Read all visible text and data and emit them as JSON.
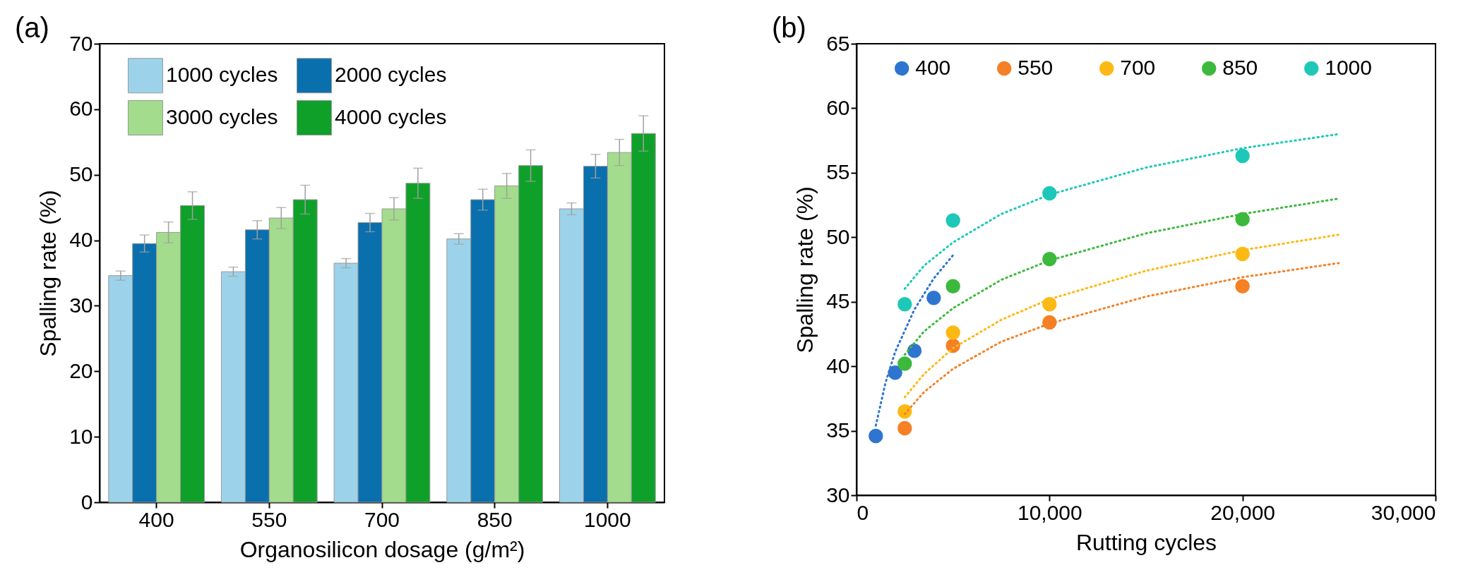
{
  "chart_data": [
    {
      "type": "bar",
      "title": "(a)",
      "xlabel": "Organosilicon dosage (g/m²)",
      "ylabel": "Spalling rate (%)",
      "categories": [
        "400",
        "550",
        "700",
        "850",
        "1000"
      ],
      "series": [
        {
          "name": "1000 cycles",
          "color": "#9dd3ea",
          "values": [
            34.6,
            35.2,
            36.5,
            40.2,
            44.8
          ],
          "errors": [
            0.7,
            0.7,
            0.7,
            0.8,
            0.9
          ]
        },
        {
          "name": "2000 cycles",
          "color": "#0a6fad",
          "values": [
            39.5,
            41.6,
            42.7,
            46.2,
            51.3
          ],
          "errors": [
            1.3,
            1.4,
            1.4,
            1.6,
            1.8
          ]
        },
        {
          "name": "3000 cycles",
          "color": "#a3dc8c",
          "values": [
            41.2,
            43.4,
            44.8,
            48.3,
            53.4
          ],
          "errors": [
            1.6,
            1.6,
            1.7,
            1.9,
            2.0
          ]
        },
        {
          "name": "4000 cycles",
          "color": "#0fa02a",
          "values": [
            45.3,
            46.2,
            48.7,
            51.4,
            56.3
          ],
          "errors": [
            2.1,
            2.2,
            2.3,
            2.4,
            2.7
          ]
        }
      ],
      "ylim": [
        0,
        70
      ],
      "yticks": [
        0,
        10,
        20,
        30,
        40,
        50,
        60,
        70
      ],
      "legend": "top left"
    },
    {
      "type": "scatter",
      "title": "(b)",
      "xlabel": "Rutting cycles",
      "ylabel": "Spalling rate (%)",
      "marker": "circle",
      "series": [
        {
          "name": "400",
          "color": "#2e75d0",
          "x": [
            1000,
            2000,
            3000,
            4000
          ],
          "values": [
            34.6,
            39.5,
            41.2,
            45.3
          ]
        },
        {
          "name": "550",
          "color": "#f58025",
          "x": [
            2500,
            5000,
            10000,
            20000
          ],
          "values": [
            35.2,
            41.6,
            43.4,
            46.2
          ]
        },
        {
          "name": "700",
          "color": "#fdb913",
          "x": [
            2500,
            5000,
            10000,
            20000
          ],
          "values": [
            36.5,
            42.6,
            44.8,
            48.7
          ]
        },
        {
          "name": "850",
          "color": "#3cb93c",
          "x": [
            2500,
            5000,
            10000,
            20000
          ],
          "values": [
            40.2,
            46.2,
            48.3,
            51.4
          ]
        },
        {
          "name": "1000",
          "color": "#1ec8b8",
          "x": [
            2500,
            5000,
            10000,
            20000
          ],
          "values": [
            44.8,
            51.3,
            53.4,
            56.3
          ]
        },
        {
          "type": "line",
          "line_style": "dotted",
          "marker": "none",
          "color": "#2e75d0",
          "x": [
            1000,
            1500,
            2000,
            3000,
            4000,
            5000
          ],
          "values": [
            35.4,
            38.7,
            41.1,
            44.4,
            46.8,
            48.6
          ]
        },
        {
          "type": "line",
          "line_style": "dotted",
          "marker": "none",
          "color": "#f58025",
          "x": [
            2500,
            3500,
            5000,
            7500,
            10000,
            15000,
            20000,
            25000
          ],
          "values": [
            36.3,
            38.0,
            39.8,
            41.9,
            43.3,
            45.4,
            46.9,
            48.0
          ]
        },
        {
          "type": "line",
          "line_style": "dotted",
          "marker": "none",
          "color": "#fdb913",
          "x": [
            2500,
            3500,
            5000,
            7500,
            10000,
            15000,
            20000,
            25000
          ],
          "values": [
            37.6,
            39.4,
            41.4,
            43.6,
            45.2,
            47.4,
            49.0,
            50.2
          ]
        },
        {
          "type": "line",
          "line_style": "dotted",
          "marker": "none",
          "color": "#3cb93c",
          "x": [
            2500,
            3500,
            5000,
            7500,
            10000,
            15000,
            20000,
            25000
          ],
          "values": [
            40.9,
            42.7,
            44.5,
            46.7,
            48.2,
            50.3,
            51.8,
            53.0
          ]
        },
        {
          "type": "line",
          "line_style": "dotted",
          "marker": "none",
          "color": "#1ec8b8",
          "x": [
            2500,
            3500,
            5000,
            7500,
            10000,
            15000,
            20000,
            25000
          ],
          "values": [
            46.0,
            47.8,
            49.6,
            51.8,
            53.3,
            55.4,
            56.9,
            58.0
          ]
        }
      ],
      "xlim": [
        0,
        30000
      ],
      "xticks": [
        0,
        {
          "value": 10000,
          "label": "10,000"
        },
        {
          "value": 20000,
          "label": "20,000"
        },
        {
          "value": 30000,
          "label": "30,000"
        }
      ],
      "ylim": [
        30,
        65
      ],
      "yticks": [
        30,
        35,
        40,
        45,
        50,
        55,
        60,
        65
      ],
      "legend": "top"
    }
  ]
}
